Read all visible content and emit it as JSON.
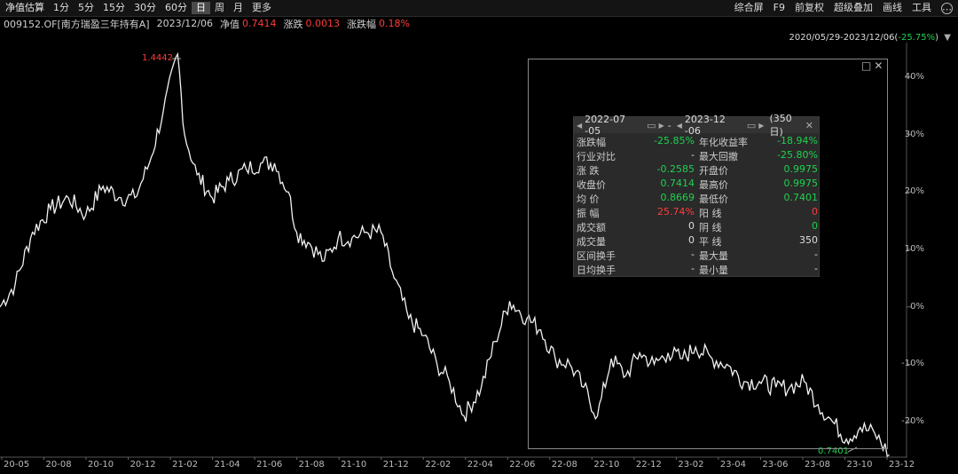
{
  "toolbar": {
    "left": [
      "净值估算",
      "1分",
      "5分",
      "15分",
      "30分",
      "60分",
      "日",
      "周",
      "月",
      "更多"
    ],
    "active_index": 6,
    "right": [
      "综合屏",
      "F9",
      "前复权",
      "超级叠加",
      "画线",
      "工具"
    ],
    "more_icon": "⋯"
  },
  "info": {
    "code": "009152.OF[南方瑞盈三年持有A]",
    "date": "2023/12/06",
    "nav_label": "净值",
    "nav_value": "0.7414",
    "change_label": "涨跌",
    "change_value": "0.0013",
    "pct_label": "涨跌幅",
    "pct_value": "0.18%"
  },
  "range": {
    "text": "2020/05/29-2023/12/06(",
    "pct": "-25.75%",
    "close": ")",
    "arrow": "▼"
  },
  "chart_data": {
    "type": "line",
    "y_unit": "%",
    "ylim": [
      -26,
      46
    ],
    "yticks": [
      "40%",
      "30%",
      "20%",
      "10%",
      "0%",
      "-10%",
      "-20%"
    ],
    "xticks": [
      "20-05",
      "20-08",
      "20-10",
      "20-12",
      "21-02",
      "21-04",
      "21-06",
      "21-08",
      "21-10",
      "21-12",
      "22-02",
      "22-04",
      "22-06",
      "22-08",
      "22-10",
      "22-12",
      "23-02",
      "23-04",
      "23-06",
      "23-08",
      "23-10",
      "23-12"
    ],
    "max_label": "1.4442",
    "min_label": "0.7401",
    "series": [
      {
        "x": [
          "2020-05-29",
          "2020-06-20",
          "2020-07-15",
          "2020-08-10",
          "2020-09-05",
          "2020-09-30",
          "2020-10-25",
          "2020-11-20",
          "2020-12-10",
          "2020-12-31",
          "2021-01-20",
          "2021-02-10",
          "2021-02-20",
          "2021-03-10",
          "2021-04-01",
          "2021-04-25",
          "2021-05-20",
          "2021-06-10",
          "2021-06-30",
          "2021-07-20",
          "2021-08-01",
          "2021-08-20",
          "2021-09-10",
          "2021-09-30",
          "2021-10-20",
          "2021-11-10",
          "2021-12-01",
          "2021-12-20",
          "2022-01-10",
          "2022-02-01",
          "2022-02-20",
          "2022-03-10",
          "2022-03-31",
          "2022-04-25",
          "2022-05-15",
          "2022-06-05",
          "2022-06-30",
          "2022-07-20",
          "2022-08-10",
          "2022-08-31",
          "2022-09-20",
          "2022-10-10",
          "2022-10-30",
          "2022-11-20",
          "2022-12-10",
          "2022-12-31",
          "2023-01-20",
          "2023-02-10",
          "2023-03-01",
          "2023-03-25",
          "2023-04-15",
          "2023-05-10",
          "2023-06-01",
          "2023-06-25",
          "2023-07-15",
          "2023-08-05",
          "2023-08-25",
          "2023-09-15",
          "2023-10-05",
          "2023-10-25",
          "2023-11-15",
          "2023-12-06"
        ],
        "y": [
          0,
          4,
          13,
          17,
          19,
          16,
          21,
          19,
          19,
          25,
          34,
          44,
          30,
          23,
          19,
          22,
          24,
          25,
          25,
          20,
          13,
          11,
          8,
          12,
          12,
          13,
          13,
          5,
          -2,
          -5,
          -10,
          -13,
          -19,
          -14,
          -6,
          1,
          -2,
          -4,
          -9,
          -10,
          -14,
          -19,
          -9,
          -12,
          -8,
          -10,
          -8,
          -9,
          -7,
          -9,
          -10,
          -13,
          -13,
          -14,
          -14,
          -13,
          -17,
          -20,
          -23,
          -21,
          -22,
          -25.75
        ]
      }
    ]
  },
  "selection": {
    "icons": [
      "□",
      "✕"
    ],
    "start_date": "2022-07 -05",
    "end_date": "2023-12 -06",
    "days": "(350日)",
    "close": "✕",
    "rows": [
      {
        "l1": "涨跌幅",
        "v1": "-25.85%",
        "c1": "green",
        "l2": "年化收益率",
        "v2": "-18.94%",
        "c2": "green"
      },
      {
        "l1": "行业对比",
        "v1": "-",
        "c1": "",
        "l2": "最大回撤",
        "v2": "-25.80%",
        "c2": "green"
      },
      {
        "l1": "涨  跌",
        "v1": "-0.2585",
        "c1": "green",
        "l2": "开盘价",
        "v2": "0.9975",
        "c2": "green"
      },
      {
        "l1": "收盘价",
        "v1": "0.7414",
        "c1": "green",
        "l2": "最高价",
        "v2": "0.9975",
        "c2": "green"
      },
      {
        "l1": "均  价",
        "v1": "0.8669",
        "c1": "green",
        "l2": "最低价",
        "v2": "0.7401",
        "c2": "green"
      },
      {
        "l1": "振  幅",
        "v1": "25.74%",
        "c1": "red",
        "l2": "阳  线",
        "v2": "0",
        "c2": "red"
      },
      {
        "l1": "成交额",
        "v1": "0",
        "c1": "",
        "l2": "阴  线",
        "v2": "0",
        "c2": "green"
      },
      {
        "l1": "成交量",
        "v1": "0",
        "c1": "",
        "l2": "平  线",
        "v2": "350",
        "c2": ""
      },
      {
        "l1": "区间换手",
        "v1": "-",
        "c1": "",
        "l2": "最大量",
        "v2": "-",
        "c2": ""
      },
      {
        "l1": "日均换手",
        "v1": "-",
        "c1": "",
        "l2": "最小量",
        "v2": "-",
        "c2": ""
      }
    ]
  }
}
